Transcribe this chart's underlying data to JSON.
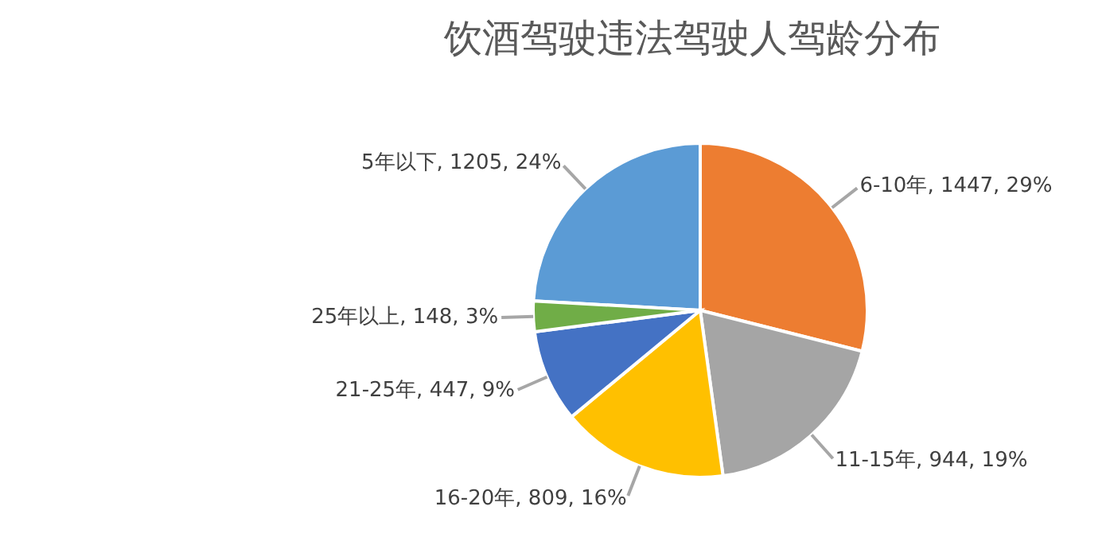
{
  "chart_data": {
    "type": "pie",
    "title": "饮酒驾驶违法驾驶人驾龄分布",
    "categories": [
      "5年以下",
      "6-10年",
      "11-15年",
      "16-20年",
      "21-25年",
      "25年以上"
    ],
    "values": [
      1205,
      1447,
      944,
      809,
      447,
      148
    ],
    "value_labels": [
      "1205, 24%",
      "1447, 29%",
      "944, 19%",
      "809, 16%",
      "447, 9%",
      "148, 3%"
    ],
    "colors": [
      "#5b9bd5",
      "#ed7d31",
      "#a5a5a5",
      "#ffc000",
      "#4472c4",
      "#70ad47"
    ],
    "legend": false
  }
}
